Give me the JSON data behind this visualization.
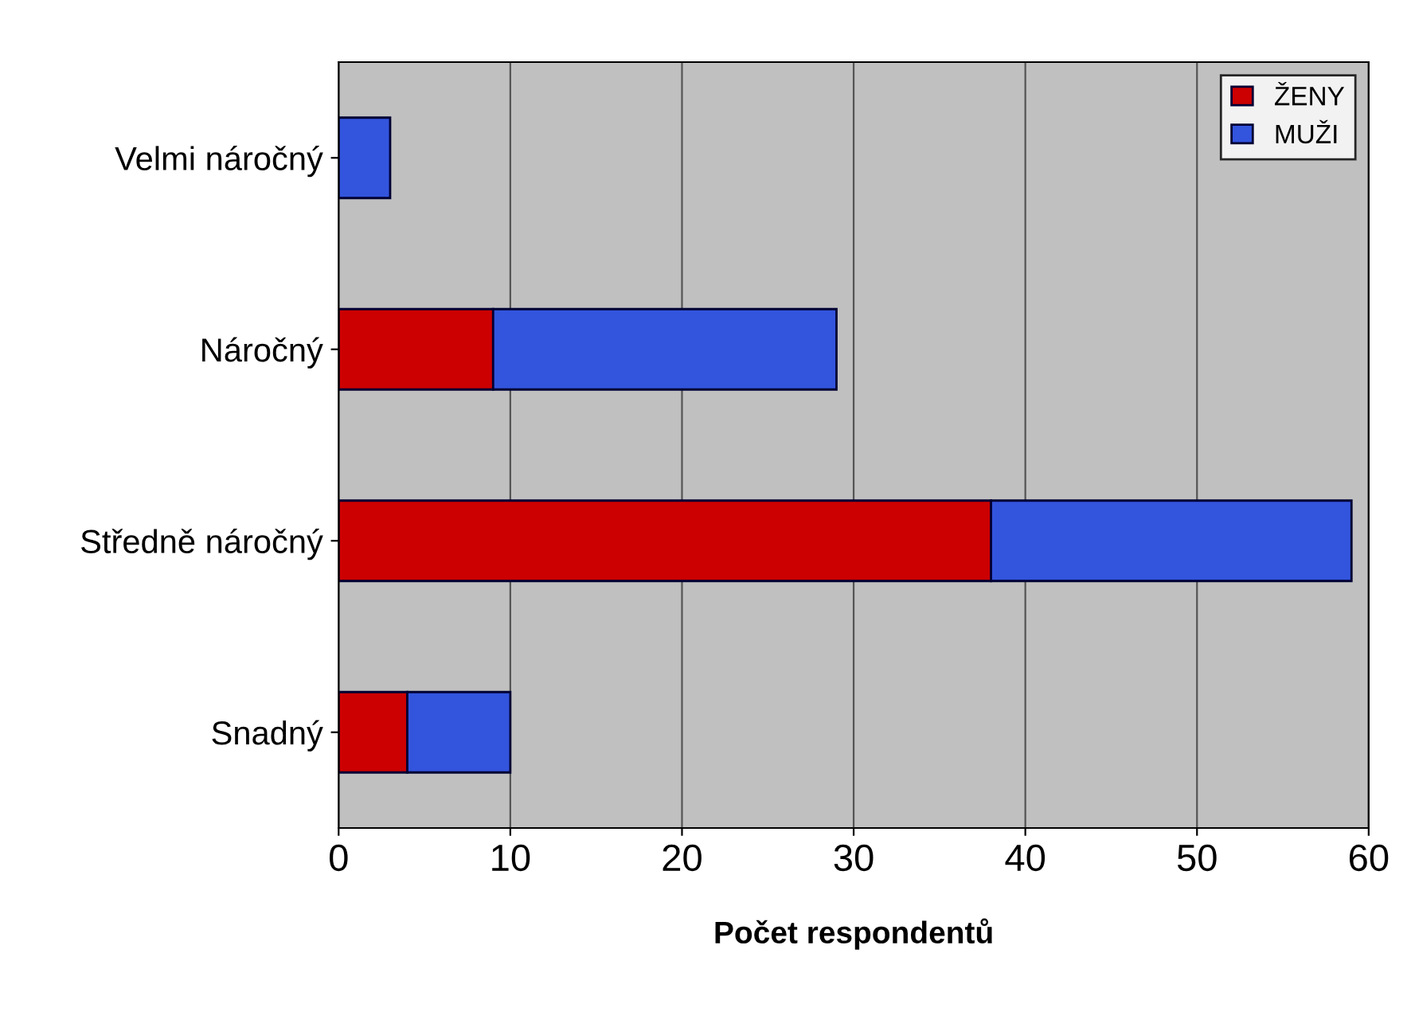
{
  "chart_data": {
    "type": "bar",
    "orientation": "horizontal",
    "stacked": true,
    "categories": [
      "Velmi náročný",
      "Náročný",
      "Středně náročný",
      "Snadný"
    ],
    "series": [
      {
        "name": "ŽENY",
        "color": "#cc0000",
        "values": [
          0,
          9,
          38,
          4
        ]
      },
      {
        "name": "MUŽI",
        "color": "#3355dd",
        "values": [
          3,
          20,
          21,
          6
        ]
      }
    ],
    "xlabel": "Počet respondentů",
    "xlim": [
      0,
      60
    ],
    "xticks": [
      0,
      10,
      20,
      30,
      40,
      50,
      60
    ],
    "grid": "x",
    "legend": "top right"
  }
}
